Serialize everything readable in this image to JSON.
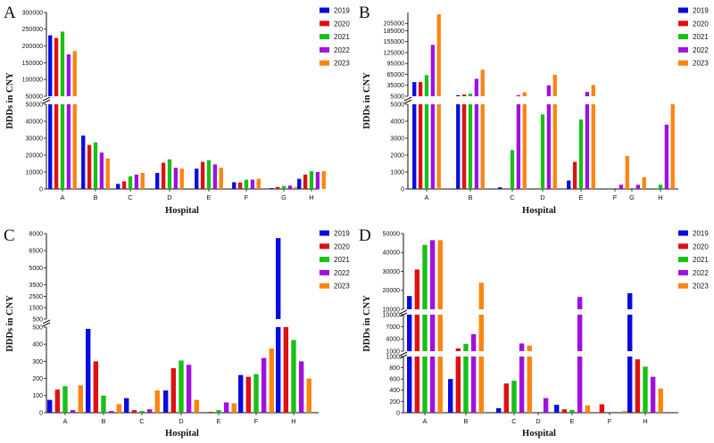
{
  "series_names": [
    "2019",
    "2020",
    "2021",
    "2022",
    "2023"
  ],
  "colors": {
    "2019": "#0a0ae0",
    "2020": "#e01010",
    "2021": "#18c018",
    "2022": "#a010e0",
    "2023": "#ff8410"
  },
  "chart_data": [
    {
      "panel": "A",
      "type": "bar",
      "title": "",
      "xlabel": "Hospital",
      "ylabel": "DDDs in CNY",
      "categories": [
        "A",
        "B",
        "C",
        "D",
        "E",
        "F",
        "G",
        "H"
      ],
      "axis_break": {
        "lower": [
          0,
          50000
        ],
        "upper": [
          50000,
          300000
        ]
      },
      "yticks_lower": [
        "0",
        "10000",
        "20000",
        "30000",
        "40000",
        "50000"
      ],
      "yticks_upper": [
        "50000",
        "100000",
        "150000",
        "200000",
        "250000",
        "300000"
      ],
      "series": [
        {
          "name": "2019",
          "values": [
            232000,
            31500,
            3000,
            9500,
            12000,
            4000,
            500,
            6000
          ]
        },
        {
          "name": "2020",
          "values": [
            224000,
            26000,
            4500,
            15500,
            16000,
            3800,
            1200,
            8500
          ]
        },
        {
          "name": "2021",
          "values": [
            243000,
            27500,
            7500,
            17500,
            17000,
            5500,
            1800,
            10500
          ]
        },
        {
          "name": "2022",
          "values": [
            175000,
            21500,
            8500,
            12500,
            14500,
            5500,
            2000,
            10000
          ]
        },
        {
          "name": "2023",
          "values": [
            185000,
            18000,
            9500,
            12000,
            12500,
            6000,
            1200,
            10500
          ]
        }
      ]
    },
    {
      "panel": "B",
      "type": "bar",
      "title": "",
      "xlabel": "Hospital",
      "ylabel": "DDDs in CNY",
      "categories": [
        "A",
        "B",
        "C",
        "D",
        "E",
        "F",
        "G",
        "H"
      ],
      "axis_break": {
        "lower": [
          0,
          5000
        ],
        "upper": [
          5000,
          235000
        ]
      },
      "yticks_lower": [
        "0",
        "1000",
        "2000",
        "3000",
        "4000",
        "5000"
      ],
      "yticks_upper": [
        "5000",
        "35000",
        "65000",
        "95000",
        "125000",
        "155000",
        "185000",
        "205000"
      ],
      "series": [
        {
          "name": "2019",
          "values": [
            44000,
            8000,
            100,
            0,
            500,
            0,
            0,
            0
          ]
        },
        {
          "name": "2020",
          "values": [
            44000,
            10000,
            0,
            0,
            1600,
            0,
            0,
            0
          ]
        },
        {
          "name": "2021",
          "values": [
            63000,
            12000,
            2300,
            4400,
            4100,
            0,
            0,
            250
          ]
        },
        {
          "name": "2022",
          "values": [
            146000,
            53000,
            8000,
            35000,
            17000,
            250,
            250,
            3800
          ]
        },
        {
          "name": "2023",
          "values": [
            230000,
            78000,
            16000,
            64000,
            36000,
            1950,
            700,
            5000
          ]
        }
      ]
    },
    {
      "panel": "C",
      "type": "bar",
      "title": "",
      "xlabel": "Hospital",
      "ylabel": "DDDs in CNY",
      "categories": [
        "A",
        "B",
        "C",
        "D",
        "E",
        "F",
        "H"
      ],
      "axis_break": {
        "lower": [
          0,
          500
        ],
        "upper": [
          500,
          8000
        ]
      },
      "yticks_lower": [
        "0",
        "100",
        "200",
        "300",
        "400",
        "500"
      ],
      "yticks_upper": [
        "500",
        "1500",
        "2500",
        "3500",
        "5000",
        "6500",
        "8000"
      ],
      "series": [
        {
          "name": "2019",
          "values": [
            75,
            490,
            85,
            130,
            0,
            220,
            7600
          ]
        },
        {
          "name": "2020",
          "values": [
            135,
            300,
            15,
            260,
            5,
            210,
            500
          ]
        },
        {
          "name": "2021",
          "values": [
            155,
            100,
            10,
            305,
            15,
            225,
            425
          ]
        },
        {
          "name": "2022",
          "values": [
            15,
            10,
            20,
            280,
            60,
            320,
            300
          ]
        },
        {
          "name": "2023",
          "values": [
            160,
            50,
            130,
            75,
            55,
            375,
            200
          ]
        }
      ]
    },
    {
      "panel": "D",
      "type": "bar",
      "title": "",
      "xlabel": "Hospital",
      "ylabel": "DDDs in CNY",
      "categories": [
        "A",
        "B",
        "C",
        "D",
        "E",
        "F",
        "H"
      ],
      "axis_break": {
        "lower": [
          0,
          1000
        ],
        "mid": [
          1000,
          10000
        ],
        "upper": [
          10000,
          50000
        ]
      },
      "yticks_lower": [
        "0",
        "200",
        "400",
        "600",
        "800",
        "1000"
      ],
      "yticks_mid": [
        "1000",
        "4000",
        "7000",
        "10000"
      ],
      "yticks_upper": [
        "10000",
        "20000",
        "30000",
        "40000",
        "50000"
      ],
      "series": [
        {
          "name": "2019",
          "values": [
            17000,
            600,
            80,
            0,
            140,
            0,
            18500
          ]
        },
        {
          "name": "2020",
          "values": [
            31000,
            1700,
            520,
            0,
            60,
            150,
            950
          ]
        },
        {
          "name": "2021",
          "values": [
            44000,
            2800,
            570,
            0,
            50,
            0,
            820
          ]
        },
        {
          "name": "2022",
          "values": [
            46500,
            5200,
            2900,
            260,
            16500,
            0,
            640
          ]
        },
        {
          "name": "2023",
          "values": [
            46500,
            24000,
            2400,
            0,
            130,
            30,
            430
          ]
        }
      ]
    }
  ]
}
